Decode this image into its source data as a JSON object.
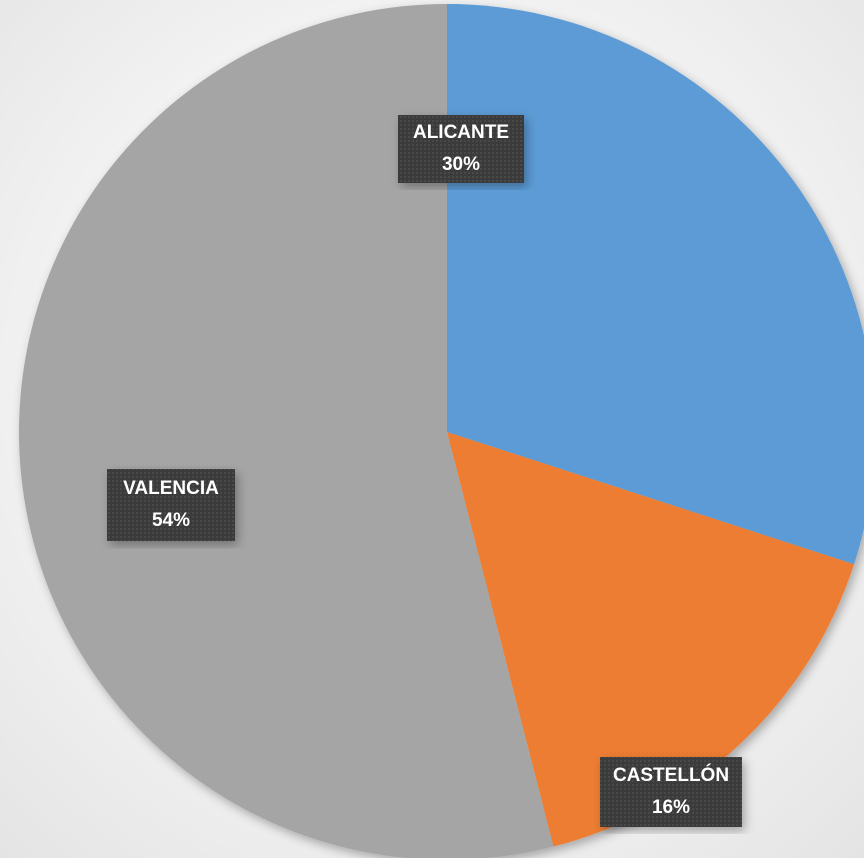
{
  "chart_data": {
    "type": "pie",
    "categories": [
      "ALICANTE",
      "CASTELLÓN",
      "VALENCIA"
    ],
    "values": [
      30,
      16,
      54
    ],
    "value_labels": [
      "30%",
      "16%",
      "54%"
    ],
    "colors": [
      "#5b9bd5",
      "#ed7d31",
      "#a5a5a5"
    ]
  }
}
